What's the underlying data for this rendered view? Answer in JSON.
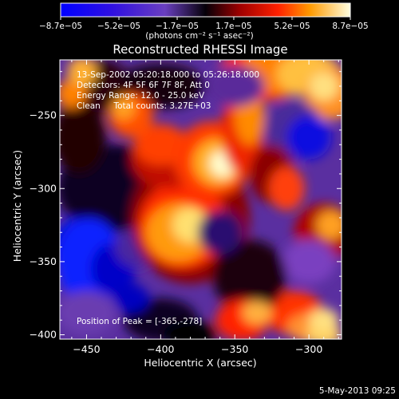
{
  "colorbar": {
    "tick_labels": [
      "-8.7e-05",
      "-5.2e-05",
      "-1.7e-05",
      "1.7e-05",
      "5.2e-05",
      "8.7e-05"
    ],
    "range": [
      -8.7e-05,
      8.7e-05
    ],
    "unit_label": "(photons cm⁻² s⁻¹ asec⁻²)"
  },
  "chart_data": {
    "type": "heatmap",
    "title": "Reconstructed RHESSI Image",
    "xlabel": "Heliocentric X (arcsec)",
    "ylabel": "Heliocentric Y (arcsec)",
    "xlim": [
      -468,
      -278
    ],
    "ylim": [
      -403,
      -212
    ],
    "x_ticks": [
      -450,
      -400,
      -350,
      -300
    ],
    "y_ticks": [
      -250,
      -300,
      -350,
      -400
    ],
    "x_tick_labels": [
      "-450",
      "-400",
      "-350",
      "-300"
    ],
    "y_tick_labels": [
      "-250",
      "-300",
      "-350",
      "-400"
    ],
    "peak_position": [
      -365,
      -278
    ],
    "annotations": {
      "time_range": "13-Sep-2002 05:20:18.000 to 05:26:18.000",
      "detectors": "Detectors: 4F 5F 6F 7F 8F, Att 0",
      "energy_range": "Energy Range: 12.0 - 25.0 keV",
      "clean_counts": "Clean     Total counts: 3.27E+03",
      "peak": "Position of Peak = [-365,-278]"
    }
  },
  "footer": {
    "date": "5-May-2013 09:25"
  }
}
